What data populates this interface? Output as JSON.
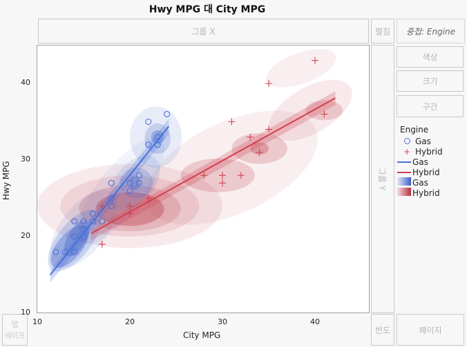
{
  "title": "Hwy MPG 대 City MPG",
  "zones": {
    "group_x": "그룹 X",
    "wrap": "펼침",
    "overlay": "중첩: Engine",
    "color": "색상",
    "size": "크기",
    "interval": "구간",
    "group_y": "그룹 Y",
    "map_shape": "맵 쉐이프",
    "map_top": "맵",
    "freq": "빈도",
    "page": "페이지"
  },
  "legend": {
    "title": "Engine",
    "items": [
      {
        "label": "Gas",
        "kind": "marker-circle"
      },
      {
        "label": "Hybrid",
        "kind": "marker-plus"
      },
      {
        "label": "Gas",
        "kind": "line"
      },
      {
        "label": "Hybrid",
        "kind": "line"
      },
      {
        "label": "Gas",
        "kind": "gradient"
      },
      {
        "label": "Hybrid",
        "kind": "gradient"
      }
    ]
  },
  "colors": {
    "gas": "#4a6fd8",
    "hybrid": "#d04050"
  },
  "chart_data": {
    "type": "scatter",
    "xlabel": "City MPG",
    "ylabel": "Hwy MPG",
    "xlim": [
      10,
      46
    ],
    "ylim": [
      10,
      45
    ],
    "xticks": [
      10,
      20,
      30,
      40
    ],
    "yticks": [
      10,
      20,
      30,
      40
    ],
    "grid": false,
    "legend": "right",
    "series": [
      {
        "name": "Gas",
        "marker": "circle",
        "points": [
          [
            12,
            18
          ],
          [
            13,
            18
          ],
          [
            14,
            18
          ],
          [
            14,
            20
          ],
          [
            15,
            20
          ],
          [
            15,
            21
          ],
          [
            14,
            22
          ],
          [
            15,
            22
          ],
          [
            16,
            22
          ],
          [
            16,
            23
          ],
          [
            17,
            22
          ],
          [
            18,
            24
          ],
          [
            18,
            25
          ],
          [
            18,
            27
          ],
          [
            20,
            26
          ],
          [
            20,
            27
          ],
          [
            21,
            27
          ],
          [
            21,
            28
          ],
          [
            22,
            32
          ],
          [
            22,
            35
          ],
          [
            23,
            33
          ],
          [
            23,
            32
          ],
          [
            24,
            36
          ]
        ],
        "fit": [
          [
            11.4,
            15
          ],
          [
            24.2,
            34.4
          ]
        ]
      },
      {
        "name": "Hybrid",
        "marker": "plus",
        "points": [
          [
            17,
            19
          ],
          [
            17,
            24
          ],
          [
            20,
            24
          ],
          [
            20,
            23
          ],
          [
            22,
            25
          ],
          [
            28,
            28
          ],
          [
            30,
            28
          ],
          [
            30,
            27
          ],
          [
            32,
            28
          ],
          [
            31,
            35
          ],
          [
            33,
            33
          ],
          [
            35,
            34
          ],
          [
            34,
            31
          ],
          [
            35,
            40
          ],
          [
            40,
            43
          ],
          [
            41,
            36
          ]
        ],
        "fit": [
          [
            15.8,
            20.4
          ],
          [
            42.2,
            38.1
          ]
        ]
      }
    ]
  }
}
